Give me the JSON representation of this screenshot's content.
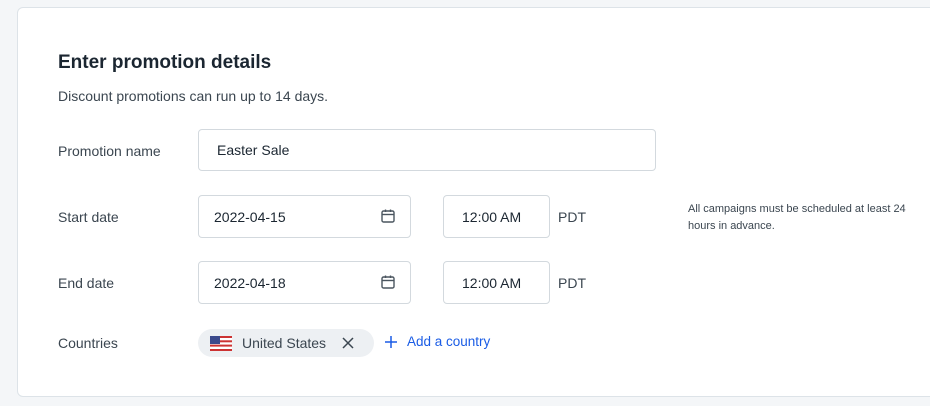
{
  "form": {
    "title": "Enter promotion details",
    "subtitle": "Discount promotions can run up to 14 days.",
    "promotion_name": {
      "label": "Promotion name",
      "value": "Easter Sale"
    },
    "start": {
      "label": "Start date",
      "date": "2022-04-15",
      "time": "12:00 AM",
      "timezone": "PDT"
    },
    "end": {
      "label": "End date",
      "date": "2022-04-18",
      "time": "12:00 AM",
      "timezone": "PDT"
    },
    "schedule_note": "All campaigns must be scheduled at least 24 hours in advance.",
    "countries": {
      "label": "Countries",
      "selected": [
        "United States"
      ],
      "add_label": "Add a country"
    },
    "accent_color": "#1a5ce5"
  }
}
